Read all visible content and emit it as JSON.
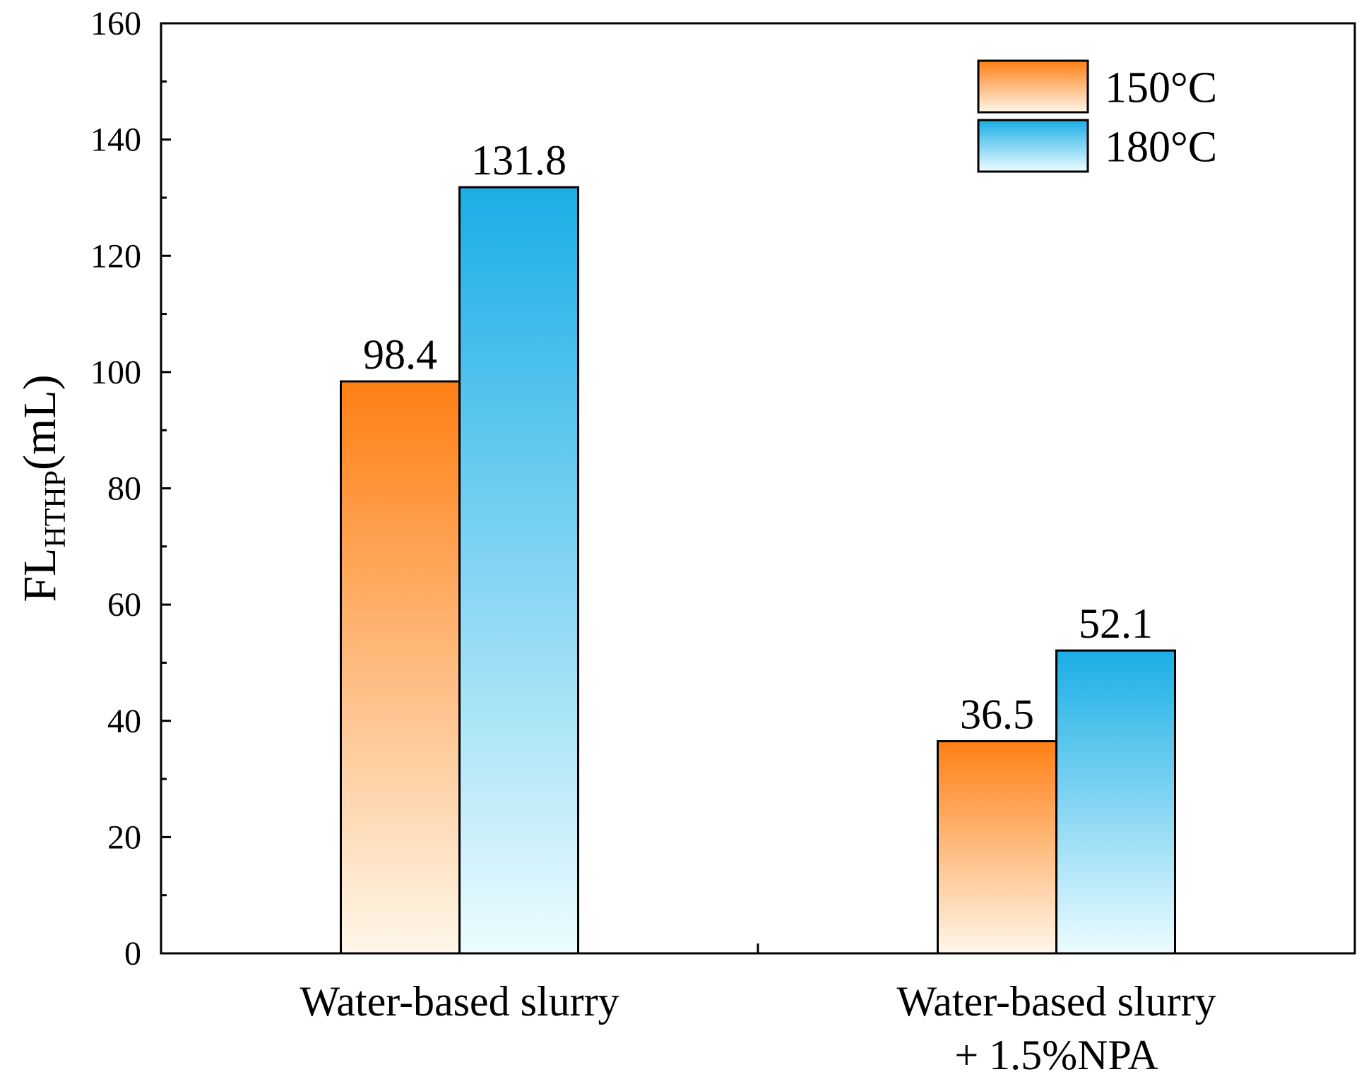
{
  "chart_data": {
    "type": "bar",
    "title": "",
    "xlabel": "",
    "ylabel": {
      "main": "FL",
      "subscript": "HTHP",
      "suffix": "(mL)"
    },
    "ylim": [
      0,
      160
    ],
    "yticks": [
      0,
      20,
      40,
      60,
      80,
      100,
      120,
      140,
      160
    ],
    "categories": [
      [
        "Water-based slurry"
      ],
      [
        "Water-based slurry",
        "+ 1.5%NPA"
      ]
    ],
    "series": [
      {
        "name": "150°C",
        "values": [
          98.4,
          36.5
        ],
        "color_top": "#ff7f14",
        "color_bottom": "#fff7ea"
      },
      {
        "name": "180°C",
        "values": [
          131.8,
          52.1
        ],
        "color_top": "#1aaee6",
        "color_bottom": "#edfcff"
      }
    ],
    "legend_position": "top-right",
    "grid": false
  }
}
